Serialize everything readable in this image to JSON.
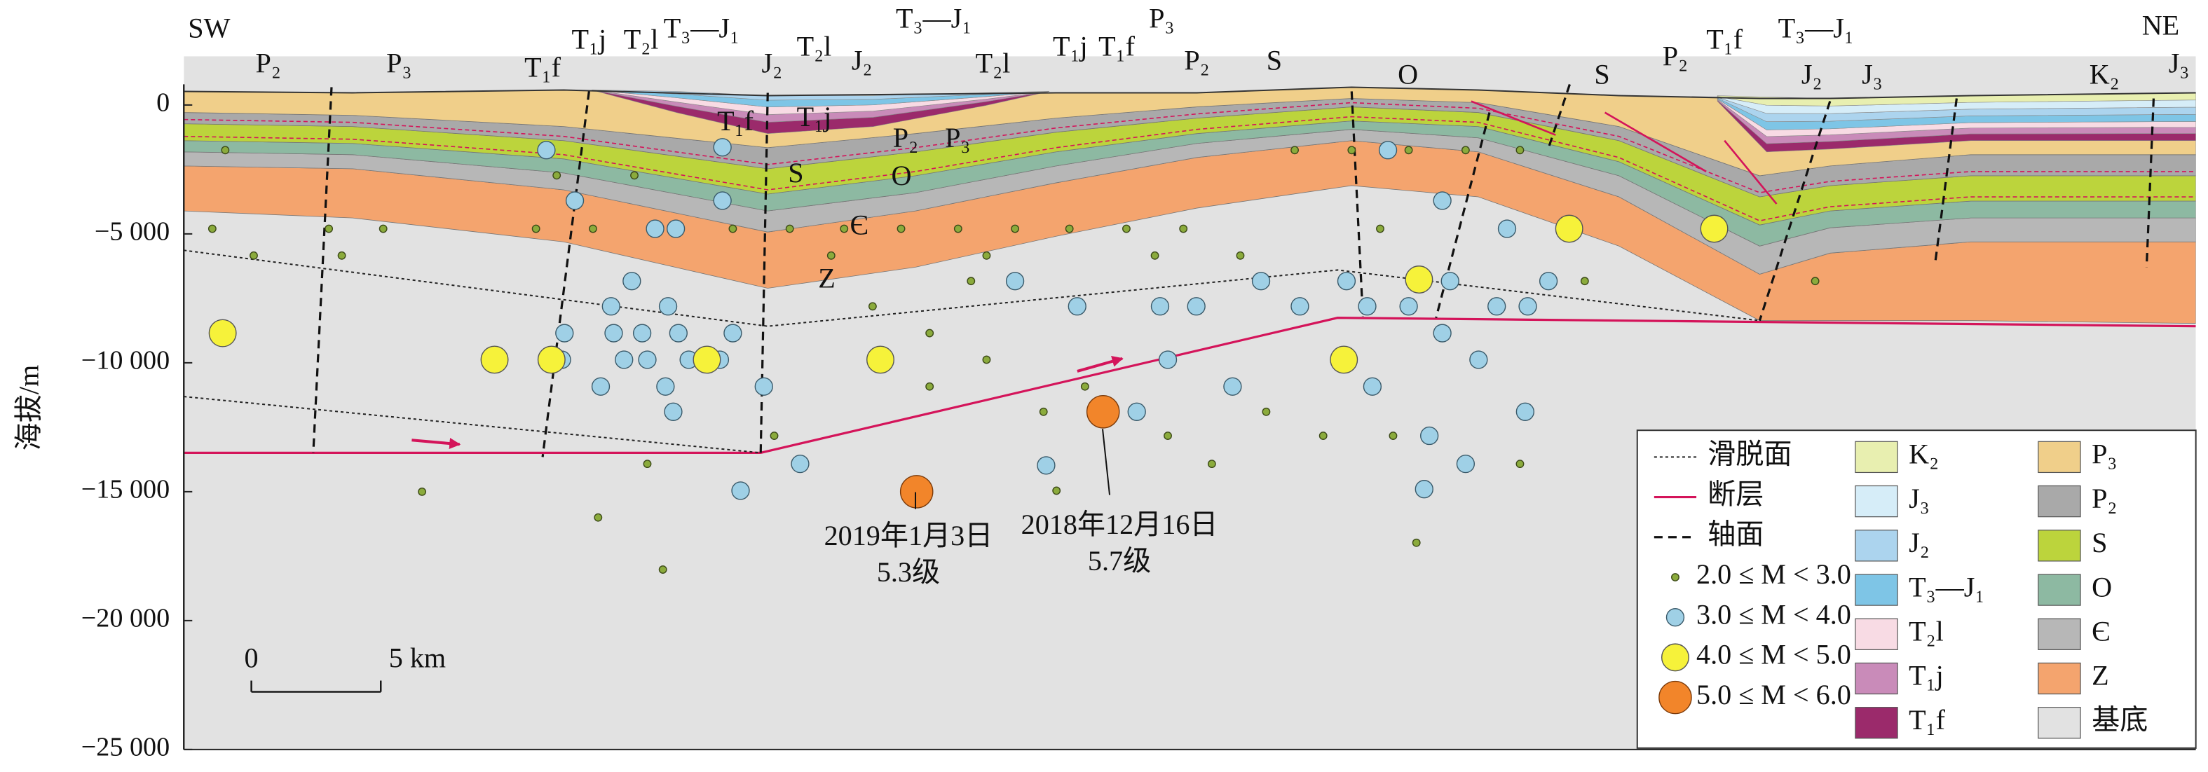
{
  "chart_data": {
    "type": "scatter",
    "y_label": "海拔/m",
    "ylim": [
      -25000,
      800
    ],
    "yticks": [
      0,
      {
        "value": -5000,
        "label": "−5 000"
      },
      {
        "value": -10000,
        "label": "−10 000"
      },
      {
        "value": -15000,
        "label": "−15 000"
      },
      {
        "value": -20000,
        "label": "−20 000"
      },
      {
        "value": -25000,
        "label": "−25 000"
      }
    ],
    "xlim": [
      0,
      77.7
    ],
    "scale_bar": [
      "0",
      "5 km"
    ],
    "series": [
      {
        "name": "2.0 ≤ M < 3.0",
        "color": "#8bab3c",
        "x": [
          1.6,
          2.7,
          6.1,
          9.2,
          16.0,
          18.5,
          47.6,
          1.1,
          5.6,
          7.7,
          13.6,
          15.8,
          21.2,
          23.4,
          25.5,
          27.7,
          29.9,
          32.1,
          34.2,
          36.4,
          38.6,
          42.9,
          45.1,
          47.3,
          49.5,
          51.6,
          14.4,
          17.4,
          25.0,
          31.0,
          37.5,
          40.8,
          26.6,
          30.4,
          28.8,
          31.0,
          33.2,
          34.8,
          38.0,
          39.7,
          41.8,
          44.0,
          46.7,
          51.6,
          54.1,
          63.0,
          46.2,
          22.8,
          17.9,
          28.8,
          33.7
        ],
        "y": [
          -1750,
          -5840,
          -5840,
          -15000,
          -16000,
          -18020,
          -16980,
          -4800,
          -4800,
          -4800,
          -4800,
          -4800,
          -4800,
          -4800,
          -4800,
          -4800,
          -4800,
          -4800,
          -4800,
          -4800,
          -4800,
          -1750,
          -1750,
          -1750,
          -1750,
          -1750,
          -2730,
          -2730,
          -5840,
          -5840,
          -5840,
          -5840,
          -7810,
          -6830,
          -8850,
          -9880,
          -11900,
          -10920,
          -12830,
          -13920,
          -11900,
          -12830,
          -12830,
          -13920,
          -6830,
          -6830,
          -4800,
          -12830,
          -13920,
          -10920,
          -14960
        ]
      },
      {
        "name": "3.0 ≤ M < 4.0",
        "color": "#9fd0e6",
        "x": [
          14.0,
          15.1,
          20.8,
          20.8,
          18.2,
          19.0,
          17.3,
          16.5,
          18.7,
          14.7,
          16.6,
          17.7,
          19.1,
          21.2,
          14.6,
          17.0,
          17.9,
          19.5,
          20.7,
          16.1,
          18.6,
          22.4,
          18.9,
          23.8,
          21.5,
          32.1,
          34.5,
          37.7,
          39.1,
          41.6,
          43.1,
          38.0,
          40.5,
          33.3,
          36.8,
          46.5,
          48.6,
          51.1,
          44.9,
          45.7,
          47.3,
          48.9,
          50.7,
          48.6,
          51.9,
          52.7,
          45.9,
          50.0,
          51.8,
          48.1,
          49.5,
          47.9
        ],
        "y": [
          -1750,
          -3710,
          -1640,
          -3710,
          -4800,
          -4800,
          -6830,
          -7810,
          -7810,
          -8850,
          -8850,
          -8850,
          -8850,
          -8850,
          -9880,
          -9880,
          -9880,
          -9880,
          -9880,
          -10920,
          -10920,
          -10920,
          -11900,
          -13920,
          -14960,
          -6830,
          -7810,
          -7810,
          -7810,
          -6830,
          -7810,
          -9880,
          -10920,
          -13980,
          -11900,
          -1750,
          -3710,
          -4800,
          -6830,
          -7810,
          -7810,
          -6830,
          -7810,
          -8850,
          -7810,
          -6830,
          -10920,
          -9880,
          -11900,
          -12830,
          -13920,
          -14900
        ]
      },
      {
        "name": "4.0 ≤ M < 5.0",
        "color": "#f6f23a",
        "x": [
          1.5,
          12.0,
          14.2,
          20.2,
          26.9,
          44.8,
          47.7,
          53.5,
          59.1
        ],
        "y": [
          -8850,
          -9880,
          -9880,
          -9880,
          -9880,
          -9880,
          -6770,
          -4800,
          -4800
        ]
      },
      {
        "name": "5.0 ≤ M < 6.0",
        "color": "#f2852a",
        "x": [
          28.3,
          35.5
        ],
        "y": [
          -15000,
          -11900
        ]
      }
    ],
    "line_legend": [
      "滑脱面",
      "断层",
      "轴面"
    ],
    "units": [
      {
        "name": "K₂",
        "color": "#e8efb0"
      },
      {
        "name": "P₃",
        "color": "#f0cf8a"
      },
      {
        "name": "J₃",
        "color": "#d6edf8"
      },
      {
        "name": "P₂",
        "color": "#a9a9a9"
      },
      {
        "name": "J₂",
        "color": "#acd4ee"
      },
      {
        "name": "S",
        "color": "#bcd43c"
      },
      {
        "name": "T₃—J₁",
        "color": "#7ec5e6"
      },
      {
        "name": "O",
        "color": "#8db9a2"
      },
      {
        "name": "T₂l",
        "color": "#f8dbe4"
      },
      {
        "name": "Є",
        "color": "#b7b7b7"
      },
      {
        "name": "T₁j",
        "color": "#c98bb9"
      },
      {
        "name": "Z",
        "color": "#f4a46e"
      },
      {
        "name": "T₁f",
        "color": "#9b2a6b"
      },
      {
        "name": "基底",
        "color": "#e2e2e2"
      }
    ],
    "formation_labels": [
      "SW",
      "P₂",
      "P₃",
      "T₁f",
      "T₁j",
      "T₂l",
      "T₃—J₁",
      "J₂",
      "T₂l",
      "J₂",
      "T₃—J₁",
      "T₂l",
      "T₁j",
      "T₁f",
      "P₃",
      "P₂",
      "S",
      "O",
      "S",
      "P₂",
      "T₁f",
      "T₃—J₁",
      "J₂",
      "J₃",
      "K₂",
      "NE",
      "J₃",
      "T₁f",
      "T₁j",
      "P₂",
      "P₃",
      "S",
      "O",
      "Є",
      "Z"
    ],
    "annotations": [
      {
        "date": "2019年1月3日",
        "magnitude": "5.3级"
      },
      {
        "date": "2018年12月16日",
        "magnitude": "5.7级"
      }
    ]
  }
}
